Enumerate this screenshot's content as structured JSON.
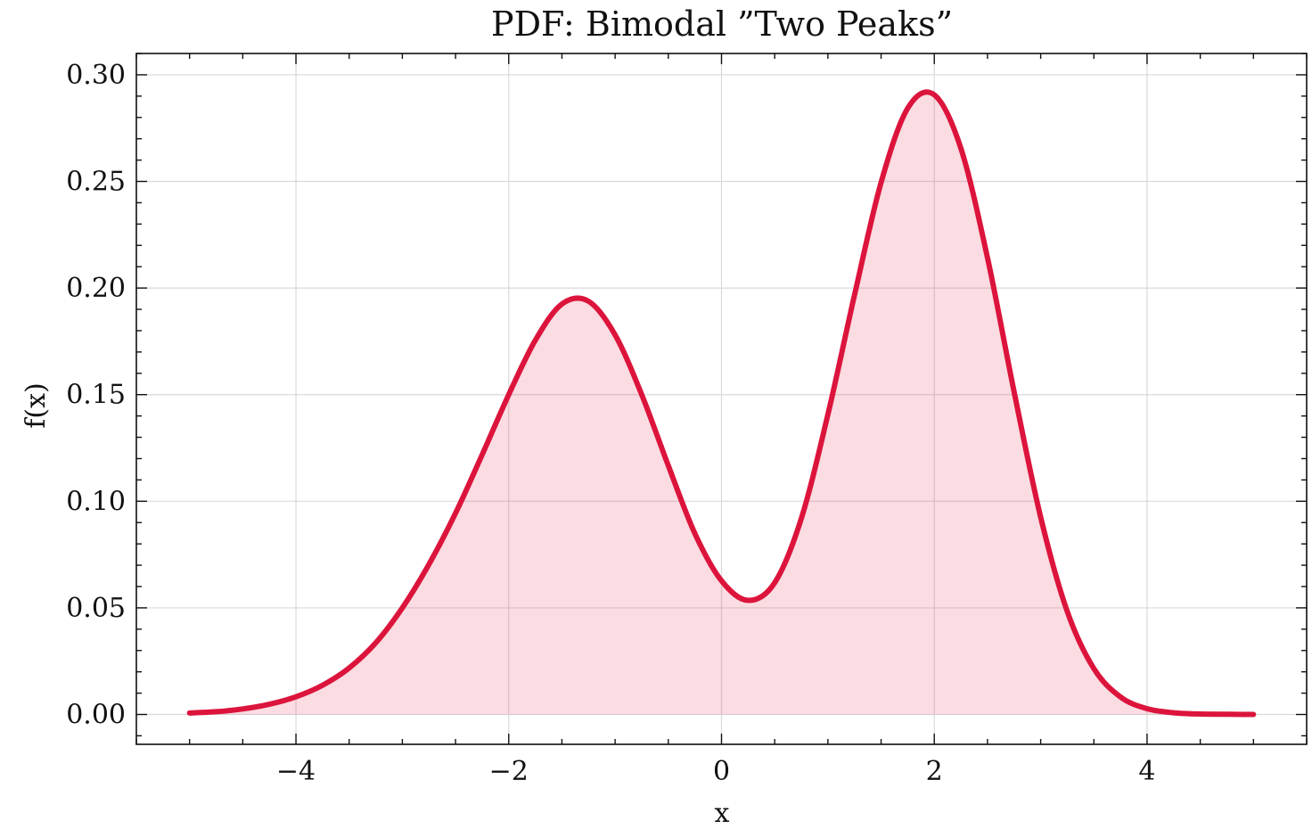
{
  "chart_data": {
    "type": "area",
    "title": "PDF: Bimodal ”Two Peaks”",
    "xlabel": "x",
    "ylabel": "f(x)",
    "xlim": [
      -5.5,
      5.5
    ],
    "ylim": [
      -0.014,
      0.31
    ],
    "x_ticks": [
      -4,
      -2,
      0,
      2,
      4
    ],
    "x_tick_labels": [
      "−4",
      "−2",
      "0",
      "2",
      "4"
    ],
    "x_minor_step": 0.5,
    "y_ticks": [
      0.0,
      0.05,
      0.1,
      0.15,
      0.2,
      0.25,
      0.3
    ],
    "y_tick_labels": [
      "0.00",
      "0.05",
      "0.10",
      "0.15",
      "0.20",
      "0.25",
      "0.30"
    ],
    "y_minor_step": 0.01,
    "grid": true,
    "series": [
      {
        "color": "#dc143c",
        "fill_color": "#dc143c",
        "fill_opacity": 0.15,
        "x": [
          -5.0,
          -4.75,
          -4.5,
          -4.25,
          -4.0,
          -3.75,
          -3.5,
          -3.25,
          -3.0,
          -2.75,
          -2.5,
          -2.25,
          -2.0,
          -1.75,
          -1.5,
          -1.25,
          -1.0,
          -0.75,
          -0.5,
          -0.25,
          0.0,
          0.25,
          0.5,
          0.75,
          1.0,
          1.25,
          1.5,
          1.75,
          2.0,
          2.25,
          2.5,
          2.75,
          3.0,
          3.25,
          3.5,
          3.75,
          4.0,
          4.25,
          4.5,
          4.75,
          5.0
        ],
        "y": [
          0.0007,
          0.0013,
          0.0026,
          0.0048,
          0.0083,
          0.0137,
          0.0218,
          0.0336,
          0.05,
          0.0704,
          0.0944,
          0.1218,
          0.15,
          0.1755,
          0.1925,
          0.1938,
          0.178,
          0.15,
          0.1167,
          0.0848,
          0.0627,
          0.0535,
          0.0618,
          0.0919,
          0.1407,
          0.1967,
          0.2495,
          0.2843,
          0.2906,
          0.2655,
          0.2142,
          0.1514,
          0.0925,
          0.0483,
          0.0215,
          0.0082,
          0.0027,
          0.0008,
          0.0002,
          0.0001,
          0.0
        ]
      }
    ]
  }
}
